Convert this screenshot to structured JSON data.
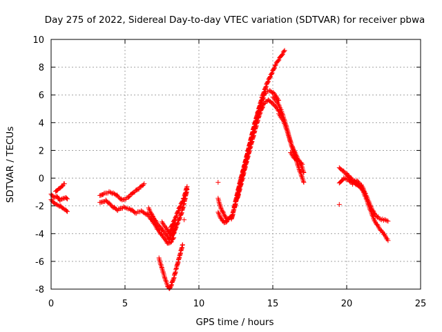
{
  "chart_data": {
    "type": "scatter",
    "title": "Day 275 of 2022, Sidereal Day-to-day VTEC variation (SDTVAR) for receiver pbwa",
    "xlabel": "GPS time / hours",
    "ylabel": "SDTVAR / TECUs",
    "xlim": [
      0,
      25
    ],
    "ylim": [
      -8,
      10
    ],
    "x_ticks": [
      0,
      5,
      10,
      15,
      20,
      25
    ],
    "y_ticks": [
      -8,
      -6,
      -4,
      -2,
      0,
      2,
      4,
      6,
      8,
      10
    ],
    "grid": true,
    "marker": "+",
    "color": "#ff0000",
    "series": [
      {
        "name": "pbwa",
        "segments": [
          {
            "x": [
              0.0,
              0.2,
              0.4,
              0.6,
              0.8,
              1.0,
              1.1
            ],
            "y": [
              -1.2,
              -1.4,
              -1.3,
              -1.6,
              -1.5,
              -1.4,
              -1.5
            ]
          },
          {
            "x": [
              0.0,
              0.2,
              0.4,
              0.6,
              0.8,
              1.0,
              1.1
            ],
            "y": [
              -1.6,
              -1.8,
              -1.9,
              -2.0,
              -2.2,
              -2.3,
              -2.4
            ]
          },
          {
            "x": [
              0.3,
              0.5,
              0.7,
              0.9
            ],
            "y": [
              -1.0,
              -0.8,
              -0.6,
              -0.4
            ]
          },
          {
            "x": [
              3.3,
              3.6,
              4.0,
              4.4,
              4.8,
              5.2,
              5.6,
              6.0,
              6.3
            ],
            "y": [
              -1.3,
              -1.1,
              -1.0,
              -1.2,
              -1.6,
              -1.4,
              -1.0,
              -0.7,
              -0.4
            ]
          },
          {
            "x": [
              3.3,
              3.7,
              4.1,
              4.5,
              4.9,
              5.3,
              5.7,
              6.1,
              6.5
            ],
            "y": [
              -1.8,
              -1.6,
              -2.0,
              -2.3,
              -2.1,
              -2.2,
              -2.5,
              -2.4,
              -2.6
            ]
          },
          {
            "x": [
              6.5,
              6.8,
              7.1,
              7.4,
              7.7,
              7.9,
              8.1,
              8.3
            ],
            "y": [
              -2.6,
              -3.0,
              -3.5,
              -4.0,
              -4.4,
              -4.7,
              -4.6,
              -4.3
            ]
          },
          {
            "x": [
              6.6,
              6.9,
              7.2,
              7.5,
              7.8,
              8.0,
              8.2,
              8.4
            ],
            "y": [
              -2.2,
              -2.8,
              -3.3,
              -3.7,
              -4.1,
              -4.4,
              -4.0,
              -3.7
            ]
          },
          {
            "x": [
              7.5,
              7.8,
              8.0,
              8.2,
              8.4
            ],
            "y": [
              -3.2,
              -3.6,
              -4.0,
              -3.6,
              -3.2
            ]
          },
          {
            "x": [
              8.2,
              8.5,
              8.8,
              9.0,
              9.2
            ],
            "y": [
              -4.2,
              -3.4,
              -2.6,
              -1.8,
              -0.8
            ]
          },
          {
            "x": [
              8.1,
              8.4,
              8.7,
              9.0,
              9.2
            ],
            "y": [
              -3.6,
              -2.9,
              -2.1,
              -1.4,
              -0.6
            ]
          },
          {
            "x": [
              7.3,
              7.5,
              7.7,
              7.9,
              8.0,
              8.1,
              8.3,
              8.5,
              8.7,
              8.9
            ],
            "y": [
              -5.8,
              -6.5,
              -7.2,
              -7.8,
              -8.0,
              -7.8,
              -7.2,
              -6.4,
              -5.6,
              -4.8
            ]
          },
          {
            "x": [
              9.0
            ],
            "y": [
              -3.0
            ]
          },
          {
            "x": [
              11.3,
              11.5,
              11.7,
              11.9,
              12.1,
              12.3
            ],
            "y": [
              -1.5,
              -2.2,
              -2.6,
              -3.0,
              -2.9,
              -2.6
            ]
          },
          {
            "x": [
              11.3,
              11.5,
              11.7,
              11.9,
              12.1
            ],
            "y": [
              -2.5,
              -2.9,
              -3.2,
              -3.1,
              -2.8
            ]
          },
          {
            "x": [
              11.3
            ],
            "y": [
              -0.3
            ]
          },
          {
            "x": [
              12.2,
              12.5,
              12.8,
              13.1,
              13.4,
              13.7,
              14.0,
              14.3,
              14.6,
              14.9,
              15.2,
              15.5,
              15.8
            ],
            "y": [
              -3.0,
              -1.6,
              -0.2,
              1.0,
              2.3,
              3.6,
              4.8,
              5.9,
              6.8,
              7.5,
              8.2,
              8.7,
              9.2
            ]
          },
          {
            "x": [
              12.4,
              12.7,
              13.0,
              13.3,
              13.6,
              13.9,
              14.2,
              14.5,
              14.8,
              15.1,
              15.4
            ],
            "y": [
              -2.2,
              -0.8,
              0.5,
              1.8,
              3.1,
              4.3,
              5.4,
              6.2,
              6.3,
              6.1,
              5.6
            ]
          },
          {
            "x": [
              12.6,
              12.9,
              13.2,
              13.5,
              13.8,
              14.1,
              14.4,
              14.7,
              15.0,
              15.3,
              15.6
            ],
            "y": [
              -1.5,
              -0.2,
              1.1,
              2.3,
              3.5,
              4.6,
              5.4,
              5.6,
              5.4,
              5.0,
              4.6
            ]
          },
          {
            "x": [
              15.0,
              15.3,
              15.6,
              15.9,
              16.2,
              16.5,
              16.8,
              17.1
            ],
            "y": [
              5.8,
              5.5,
              4.8,
              3.8,
              2.6,
              1.6,
              0.6,
              -0.3
            ]
          },
          {
            "x": [
              15.4,
              15.7,
              16.0,
              16.3,
              16.6,
              16.9,
              17.1
            ],
            "y": [
              4.6,
              4.2,
              3.3,
              2.3,
              1.6,
              1.0,
              0.4
            ]
          },
          {
            "x": [
              16.2,
              16.5,
              16.8,
              17.0
            ],
            "y": [
              1.8,
              1.4,
              1.2,
              1.0
            ]
          },
          {
            "x": [
              19.5,
              19.8,
              20.1,
              20.4,
              20.7,
              21.0,
              21.3,
              21.6,
              21.9,
              22.2,
              22.5,
              22.8
            ],
            "y": [
              0.7,
              0.5,
              0.1,
              -0.3,
              -0.5,
              -0.7,
              -1.4,
              -2.3,
              -3.1,
              -3.6,
              -4.0,
              -4.5
            ]
          },
          {
            "x": [
              19.5,
              19.8,
              20.1,
              20.4,
              20.7,
              21.0,
              21.3,
              21.6,
              21.9,
              22.2,
              22.5,
              22.8
            ],
            "y": [
              -0.4,
              0.0,
              -0.1,
              -0.4,
              -0.2,
              -0.5,
              -1.2,
              -2.0,
              -2.6,
              -2.9,
              -3.0,
              -3.1
            ]
          },
          {
            "x": [
              20.0,
              20.3,
              20.6,
              20.9,
              21.2
            ],
            "y": [
              0.3,
              0.0,
              -0.3,
              -0.6,
              -1.0
            ]
          },
          {
            "x": [
              19.5
            ],
            "y": [
              -1.9
            ]
          }
        ]
      }
    ]
  }
}
